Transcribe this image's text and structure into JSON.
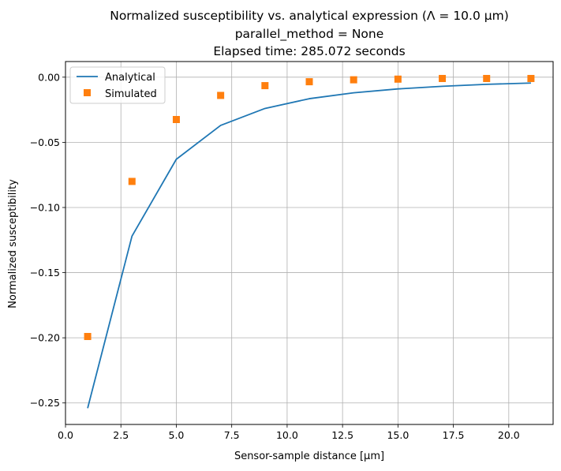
{
  "chart_data": {
    "type": "line",
    "title_lines": [
      "Normalized susceptibility vs. analytical expression (Λ = 10.0 μm)",
      "parallel_method = None",
      "Elapsed time: 285.072 seconds"
    ],
    "xlabel": "Sensor-sample distance [μm]",
    "ylabel": "Normalized susceptibility",
    "xlim": [
      0.0,
      22.0
    ],
    "ylim": [
      -0.2665,
      0.012
    ],
    "x_ticks": [
      0.0,
      2.5,
      5.0,
      7.5,
      10.0,
      12.5,
      15.0,
      17.5,
      20.0
    ],
    "x_tick_labels": [
      "0.0",
      "2.5",
      "5.0",
      "7.5",
      "10.0",
      "12.5",
      "15.0",
      "17.5",
      "20.0"
    ],
    "y_ticks": [
      0.0,
      -0.05,
      -0.1,
      -0.15,
      -0.2,
      -0.25
    ],
    "y_tick_labels": [
      "0.00",
      "−0.05",
      "−0.10",
      "−0.15",
      "−0.20",
      "−0.25"
    ],
    "grid": true,
    "legend_position": "upper-left",
    "series": [
      {
        "name": "Analytical",
        "style": "line",
        "color": "#1f77b4",
        "x": [
          1,
          3,
          5,
          7,
          9,
          11,
          13,
          15,
          17,
          19,
          21
        ],
        "y": [
          -0.254,
          -0.122,
          -0.063,
          -0.037,
          -0.024,
          -0.0165,
          -0.012,
          -0.009,
          -0.007,
          -0.0055,
          -0.0045
        ]
      },
      {
        "name": "Simulated",
        "style": "square-marker",
        "color": "#ff7f0e",
        "x": [
          1,
          3,
          5,
          7,
          9,
          11,
          13,
          15,
          17,
          19,
          21
        ],
        "y": [
          -0.199,
          -0.08,
          -0.0325,
          -0.014,
          -0.0065,
          -0.0035,
          -0.002,
          -0.0015,
          -0.001,
          -0.001,
          -0.001
        ]
      }
    ]
  }
}
